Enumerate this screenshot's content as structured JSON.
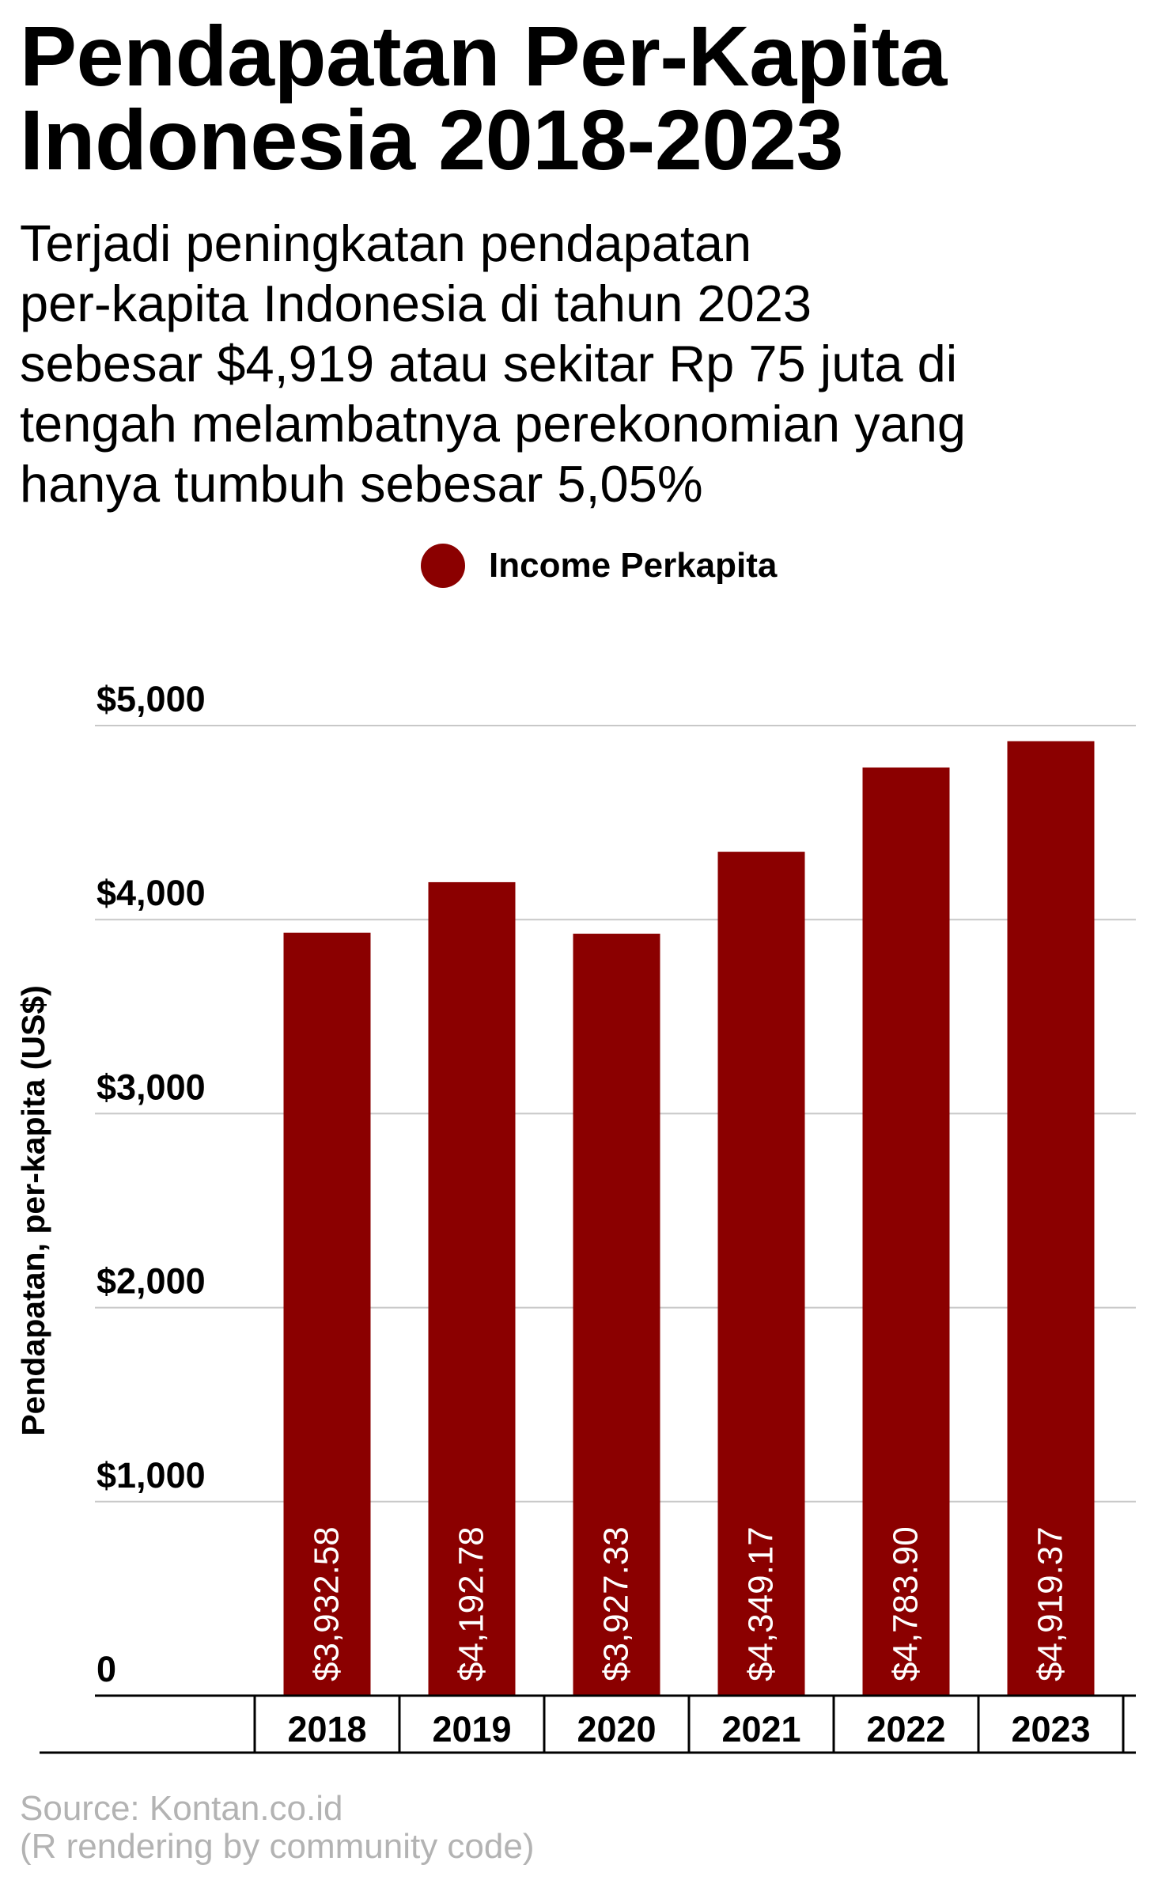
{
  "title_lines": [
    "Pendapatan Per-Kapita",
    "Indonesia 2018-2023"
  ],
  "subtitle_lines": [
    "Terjadi peningkatan pendapatan",
    "per-kapita Indonesia di tahun 2023",
    "sebesar $4,919 atau sekitar Rp 75 juta di",
    "tengah melambatnya perekonomian yang",
    "hanya tumbuh sebesar 5,05%"
  ],
  "legend": {
    "label": "Income Perkapita",
    "color": "#8b0000"
  },
  "chart_data": {
    "type": "bar",
    "categories": [
      "2018",
      "2019",
      "2020",
      "2021",
      "2022",
      "2023"
    ],
    "series": [
      {
        "name": "Income Perkapita",
        "values": [
          3932.58,
          4192.78,
          3927.33,
          4349.17,
          4783.9,
          4919.37
        ],
        "color": "#8b0000"
      }
    ],
    "data_labels": [
      "$3,932.58",
      "$4,192.78",
      "$3,927.33",
      "$4,349.17",
      "$4,783.90",
      "$4,919.37"
    ],
    "ylabel": "Pendapatan, per-kapita (US$)",
    "ylim": [
      0,
      5000
    ],
    "yticks": [
      0,
      1000,
      2000,
      3000,
      4000,
      5000
    ],
    "ytick_labels": [
      "0",
      "$1,000",
      "$2,000",
      "$3,000",
      "$4,000",
      "$5,000"
    ],
    "grid": true,
    "legend_position": "top"
  },
  "source_lines": [
    "Source: Kontan.co.id",
    "(R rendering by community code)"
  ]
}
